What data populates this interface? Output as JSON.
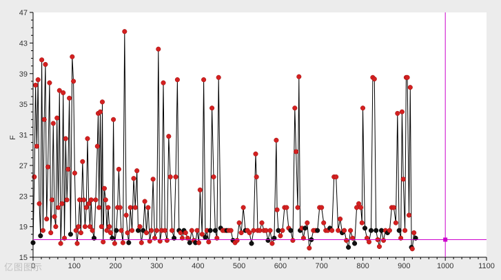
{
  "chart_data": {
    "type": "line",
    "title": "",
    "xlabel": "",
    "ylabel": "F",
    "xlim": [
      0,
      1100
    ],
    "ylim": [
      15,
      47
    ],
    "x_ticks": [
      0,
      100,
      200,
      300,
      400,
      500,
      600,
      700,
      800,
      900,
      1000,
      1100
    ],
    "y_ticks": [
      15,
      19,
      23,
      27,
      31,
      35,
      39,
      43,
      47
    ],
    "grid": false,
    "legend": "none",
    "colors": {
      "line": "#000000",
      "marker": "#d42020",
      "marker_low": "#111111",
      "cursor": "#cc00cc",
      "plot_bg": "#ffffff",
      "frame_bg": "#ececec"
    },
    "crosshair": {
      "x": 1000,
      "y": 17.3
    },
    "series": [
      {
        "values_xy": [
          [
            0,
            16.9
          ],
          [
            3,
            25.5
          ],
          [
            6,
            37.5
          ],
          [
            9,
            29.5
          ],
          [
            12,
            38.2
          ],
          [
            15,
            22
          ],
          [
            18,
            17.8
          ],
          [
            21,
            40.8
          ],
          [
            24,
            18.5
          ],
          [
            27,
            33
          ],
          [
            30,
            40.2
          ],
          [
            33,
            20
          ],
          [
            36,
            26.8
          ],
          [
            40,
            37.8
          ],
          [
            43,
            18.2
          ],
          [
            46,
            22.5
          ],
          [
            49,
            32.5
          ],
          [
            52,
            20.3
          ],
          [
            55,
            19
          ],
          [
            58,
            33.2
          ],
          [
            61,
            21.5
          ],
          [
            64,
            36.8
          ],
          [
            67,
            16.8
          ],
          [
            70,
            22
          ],
          [
            73,
            36.5
          ],
          [
            76,
            17.5
          ],
          [
            79,
            30.5
          ],
          [
            82,
            22.5
          ],
          [
            85,
            26.5
          ],
          [
            88,
            35.8
          ],
          [
            91,
            18
          ],
          [
            95,
            41.2
          ],
          [
            98,
            38
          ],
          [
            101,
            26
          ],
          [
            104,
            18.5
          ],
          [
            107,
            16.8
          ],
          [
            110,
            19
          ],
          [
            113,
            22.5
          ],
          [
            116,
            18.2
          ],
          [
            120,
            27.5
          ],
          [
            123,
            22.5
          ],
          [
            126,
            19
          ],
          [
            129,
            21.5
          ],
          [
            132,
            30.5
          ],
          [
            135,
            22
          ],
          [
            138,
            19
          ],
          [
            141,
            22.5
          ],
          [
            144,
            18.5
          ],
          [
            148,
            17.5
          ],
          [
            152,
            22.5
          ],
          [
            156,
            29.5
          ],
          [
            158,
            33.8
          ],
          [
            160,
            21.5
          ],
          [
            163,
            34
          ],
          [
            166,
            19
          ],
          [
            168,
            35.3
          ],
          [
            170,
            17
          ],
          [
            173,
            24
          ],
          [
            176,
            22.5
          ],
          [
            179,
            18.5
          ],
          [
            182,
            21.5
          ],
          [
            185,
            19
          ],
          [
            188,
            18.2
          ],
          [
            192,
            17.5
          ],
          [
            195,
            33
          ],
          [
            198,
            16.8
          ],
          [
            202,
            18.5
          ],
          [
            205,
            21.5
          ],
          [
            208,
            26.5
          ],
          [
            211,
            21.5
          ],
          [
            214,
            18.5
          ],
          [
            218,
            16.9
          ],
          [
            222,
            44.5
          ],
          [
            226,
            20.5
          ],
          [
            229,
            18.2
          ],
          [
            232,
            16.9
          ],
          [
            236,
            21.5
          ],
          [
            240,
            18.5
          ],
          [
            244,
            25.3
          ],
          [
            248,
            21.5
          ],
          [
            252,
            26.3
          ],
          [
            255,
            18.5
          ],
          [
            259,
            19
          ],
          [
            263,
            16.9
          ],
          [
            267,
            18.5
          ],
          [
            271,
            22.3
          ],
          [
            275,
            18.2
          ],
          [
            279,
            21.5
          ],
          [
            283,
            17.1
          ],
          [
            287,
            18.5
          ],
          [
            291,
            25.2
          ],
          [
            295,
            17.5
          ],
          [
            300,
            18.5
          ],
          [
            304,
            42.2
          ],
          [
            308,
            17.1
          ],
          [
            312,
            18.5
          ],
          [
            316,
            37.8
          ],
          [
            320,
            18.5
          ],
          [
            325,
            17.2
          ],
          [
            329,
            30.8
          ],
          [
            333,
            25.5
          ],
          [
            337,
            18.5
          ],
          [
            342,
            17.5
          ],
          [
            346,
            25.5
          ],
          [
            350,
            38.2
          ],
          [
            354,
            18.5
          ],
          [
            358,
            18.2
          ],
          [
            362,
            17.5
          ],
          [
            366,
            18.5
          ],
          [
            370,
            18.2
          ],
          [
            375,
            17.5
          ],
          [
            380,
            16.9
          ],
          [
            385,
            18.5
          ],
          [
            390,
            17.2
          ],
          [
            394,
            16.9
          ],
          [
            398,
            18.5
          ],
          [
            402,
            16.9
          ],
          [
            405,
            23.8
          ],
          [
            410,
            18
          ],
          [
            414,
            38.2
          ],
          [
            418,
            17.6
          ],
          [
            422,
            18.5
          ],
          [
            426,
            17
          ],
          [
            430,
            18.5
          ],
          [
            434,
            34.5
          ],
          [
            438,
            25.5
          ],
          [
            442,
            18.5
          ],
          [
            446,
            17.5
          ],
          [
            450,
            38.5
          ],
          [
            455,
            18.8
          ],
          [
            460,
            18.5
          ],
          [
            465,
            18.5
          ],
          [
            470,
            18.5
          ],
          [
            475,
            18.5
          ],
          [
            480,
            18.5
          ],
          [
            485,
            17.2
          ],
          [
            490,
            16.9
          ],
          [
            495,
            17.2
          ],
          [
            500,
            19.5
          ],
          [
            505,
            18.2
          ],
          [
            510,
            21.5
          ],
          [
            515,
            18.5
          ],
          [
            520,
            18.5
          ],
          [
            525,
            18.2
          ],
          [
            530,
            16.8
          ],
          [
            535,
            18.5
          ],
          [
            540,
            28.5
          ],
          [
            542,
            25.5
          ],
          [
            545,
            18.5
          ],
          [
            550,
            18.5
          ],
          [
            555,
            19.5
          ],
          [
            560,
            18.5
          ],
          [
            565,
            18.5
          ],
          [
            570,
            17.2
          ],
          [
            575,
            18.5
          ],
          [
            580,
            16.8
          ],
          [
            585,
            17.5
          ],
          [
            590,
            30.3
          ],
          [
            592,
            21.2
          ],
          [
            595,
            18.5
          ],
          [
            600,
            17.8
          ],
          [
            605,
            18.5
          ],
          [
            610,
            21.5
          ],
          [
            615,
            21.5
          ],
          [
            620,
            18.8
          ],
          [
            625,
            18.5
          ],
          [
            630,
            17.2
          ],
          [
            635,
            34.5
          ],
          [
            638,
            28.8
          ],
          [
            642,
            21.5
          ],
          [
            645,
            38.6
          ],
          [
            648,
            18.5
          ],
          [
            652,
            18.8
          ],
          [
            656,
            17.5
          ],
          [
            660,
            18.8
          ],
          [
            665,
            19.5
          ],
          [
            670,
            16.2
          ],
          [
            675,
            17.3
          ],
          [
            680,
            18.5
          ],
          [
            685,
            18.5
          ],
          [
            690,
            18.5
          ],
          [
            695,
            21.5
          ],
          [
            700,
            21.5
          ],
          [
            705,
            19.5
          ],
          [
            710,
            18.5
          ],
          [
            715,
            18.5
          ],
          [
            720,
            18.8
          ],
          [
            725,
            18.5
          ],
          [
            730,
            25.5
          ],
          [
            735,
            25.5
          ],
          [
            740,
            18.5
          ],
          [
            745,
            20
          ],
          [
            750,
            18.2
          ],
          [
            755,
            18.5
          ],
          [
            760,
            17.2
          ],
          [
            765,
            16.3
          ],
          [
            770,
            18.5
          ],
          [
            775,
            17.5
          ],
          [
            780,
            16.8
          ],
          [
            785,
            21.5
          ],
          [
            790,
            22
          ],
          [
            795,
            21.5
          ],
          [
            798,
            19.5
          ],
          [
            800,
            34.5
          ],
          [
            805,
            18.8
          ],
          [
            810,
            17.5
          ],
          [
            815,
            17
          ],
          [
            820,
            18.5
          ],
          [
            824,
            38.5
          ],
          [
            828,
            38.3
          ],
          [
            832,
            18.5
          ],
          [
            836,
            17.3
          ],
          [
            840,
            16.4
          ],
          [
            845,
            18.5
          ],
          [
            850,
            17.2
          ],
          [
            855,
            18.5
          ],
          [
            860,
            18.2
          ],
          [
            865,
            18.5
          ],
          [
            870,
            21.5
          ],
          [
            875,
            21.5
          ],
          [
            880,
            19.5
          ],
          [
            884,
            33.8
          ],
          [
            888,
            18.5
          ],
          [
            892,
            17.5
          ],
          [
            895,
            34
          ],
          [
            898,
            25.2
          ],
          [
            902,
            18.5
          ],
          [
            905,
            38.5
          ],
          [
            908,
            38.5
          ],
          [
            912,
            20.5
          ],
          [
            915,
            37.2
          ],
          [
            918,
            16.3
          ],
          [
            920,
            16.1
          ],
          [
            924,
            18.2
          ],
          [
            928,
            17.5
          ]
        ]
      }
    ]
  },
  "watermark": "亿图图示"
}
